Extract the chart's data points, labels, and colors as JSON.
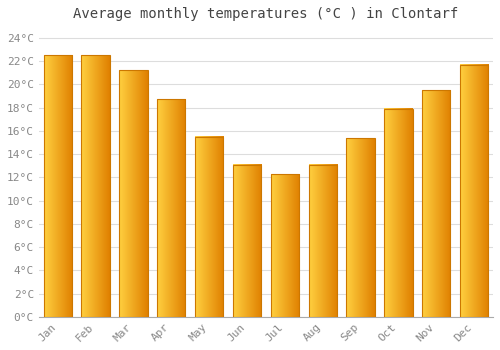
{
  "title": "Average monthly temperatures (°C ) in Clontarf",
  "months": [
    "Jan",
    "Feb",
    "Mar",
    "Apr",
    "May",
    "Jun",
    "Jul",
    "Aug",
    "Sep",
    "Oct",
    "Nov",
    "Dec"
  ],
  "values": [
    22.5,
    22.5,
    21.2,
    18.7,
    15.5,
    13.1,
    12.3,
    13.1,
    15.4,
    17.9,
    19.5,
    21.7
  ],
  "bar_color_left": "#FFD040",
  "bar_color_mid": "#FFA800",
  "bar_color_right": "#E08000",
  "bar_edge_color": "#CC7700",
  "ylim": [
    0,
    25
  ],
  "yticks": [
    0,
    2,
    4,
    6,
    8,
    10,
    12,
    14,
    16,
    18,
    20,
    22,
    24
  ],
  "ytick_labels": [
    "0°C",
    "2°C",
    "4°C",
    "6°C",
    "8°C",
    "10°C",
    "12°C",
    "14°C",
    "16°C",
    "18°C",
    "20°C",
    "22°C",
    "24°C"
  ],
  "background_color": "#FFFFFF",
  "grid_color": "#DDDDDD",
  "title_fontsize": 10,
  "tick_fontsize": 8,
  "bar_width": 0.75
}
